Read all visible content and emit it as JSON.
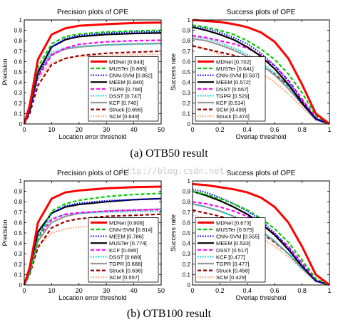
{
  "captions": {
    "a": "(a) OTB50 result",
    "b": "(b) OTB100 result"
  },
  "watermark": "http://blog.csdn.net",
  "chart_data": [
    {
      "id": "otb50-precision",
      "type": "line",
      "title": "Precision plots of OPE",
      "xlabel": "Location error threshold",
      "ylabel": "Precision",
      "xlim": [
        0,
        50
      ],
      "ylim": [
        0,
        1
      ],
      "xticks": [
        "0",
        "10",
        "20",
        "30",
        "40",
        "50"
      ],
      "yticks": [
        "0",
        "0.1",
        "0.2",
        "0.3",
        "0.4",
        "0.5",
        "0.6",
        "0.7",
        "0.8",
        "0.9",
        "1"
      ],
      "x": [
        0,
        2,
        5,
        10,
        15,
        20,
        30,
        40,
        50
      ],
      "legend_position": "bottom-right",
      "series": [
        {
          "name": "MDNet [0.944]",
          "color": "#ff0000",
          "dash": "solid",
          "values": [
            0.0,
            0.18,
            0.62,
            0.86,
            0.92,
            0.944,
            0.96,
            0.97,
            0.975
          ]
        },
        {
          "name": "MUSTer [0.865]",
          "color": "#00cc00",
          "dash": "dashed",
          "values": [
            0.0,
            0.16,
            0.55,
            0.77,
            0.84,
            0.865,
            0.885,
            0.895,
            0.9
          ]
        },
        {
          "name": "CNN-SVM [0.852]",
          "color": "#0000ff",
          "dash": "dotted",
          "values": [
            0.0,
            0.12,
            0.46,
            0.74,
            0.82,
            0.852,
            0.875,
            0.885,
            0.89
          ]
        },
        {
          "name": "MEEM [0.840]",
          "color": "#000000",
          "dash": "solid",
          "values": [
            0.0,
            0.13,
            0.5,
            0.74,
            0.81,
            0.84,
            0.86,
            0.87,
            0.875
          ]
        },
        {
          "name": "TGPR [0.766]",
          "color": "#ff00ff",
          "dash": "dashed",
          "values": [
            0.0,
            0.13,
            0.45,
            0.66,
            0.73,
            0.766,
            0.79,
            0.8,
            0.805
          ]
        },
        {
          "name": "DSST [0.747]",
          "color": "#00cccc",
          "dash": "dotted",
          "values": [
            0.0,
            0.17,
            0.52,
            0.69,
            0.73,
            0.747,
            0.76,
            0.765,
            0.77
          ]
        },
        {
          "name": "KCF [0.740]",
          "color": "#999999",
          "dash": "solid",
          "values": [
            0.0,
            0.13,
            0.48,
            0.67,
            0.72,
            0.74,
            0.76,
            0.77,
            0.775
          ]
        },
        {
          "name": "Struck [0.656]",
          "color": "#990000",
          "dash": "dashed",
          "values": [
            0.0,
            0.1,
            0.37,
            0.57,
            0.63,
            0.656,
            0.68,
            0.69,
            0.7
          ]
        },
        {
          "name": "SCM [0.649]",
          "color": "#ff9966",
          "dash": "dotted",
          "values": [
            0.0,
            0.13,
            0.43,
            0.59,
            0.63,
            0.649,
            0.66,
            0.665,
            0.67
          ]
        }
      ]
    },
    {
      "id": "otb50-success",
      "type": "line",
      "title": "Success plots of OPE",
      "xlabel": "Overlap threshold",
      "ylabel": "Success rate",
      "xlim": [
        0,
        1
      ],
      "ylim": [
        0,
        1
      ],
      "xticks": [
        "0",
        "0.2",
        "0.4",
        "0.6",
        "0.8",
        "1"
      ],
      "yticks": [
        "0",
        "0.1",
        "0.2",
        "0.3",
        "0.4",
        "0.5",
        "0.6",
        "0.7",
        "0.8",
        "0.9",
        "1"
      ],
      "x": [
        0,
        0.1,
        0.2,
        0.3,
        0.4,
        0.5,
        0.6,
        0.7,
        0.8,
        0.9,
        1.0
      ],
      "legend_position": "bottom-left",
      "series": [
        {
          "name": "MDNet [0.702]",
          "color": "#ff0000",
          "dash": "solid",
          "values": [
            1.0,
            0.99,
            0.98,
            0.96,
            0.93,
            0.88,
            0.79,
            0.63,
            0.38,
            0.1,
            0.0
          ]
        },
        {
          "name": "MUSTer [0.641]",
          "color": "#00cc00",
          "dash": "dashed",
          "values": [
            0.95,
            0.93,
            0.9,
            0.86,
            0.8,
            0.72,
            0.62,
            0.48,
            0.3,
            0.08,
            0.0
          ]
        },
        {
          "name": "CNN-SVM [0.597]",
          "color": "#0000ff",
          "dash": "dotted",
          "values": [
            0.94,
            0.92,
            0.88,
            0.83,
            0.77,
            0.68,
            0.56,
            0.41,
            0.22,
            0.05,
            0.0
          ]
        },
        {
          "name": "MEEM [0.572]",
          "color": "#000000",
          "dash": "solid",
          "values": [
            0.93,
            0.9,
            0.86,
            0.81,
            0.74,
            0.65,
            0.53,
            0.38,
            0.2,
            0.05,
            0.0
          ]
        },
        {
          "name": "DSST [0.557]",
          "color": "#ff00ff",
          "dash": "dashed",
          "values": [
            0.85,
            0.83,
            0.8,
            0.77,
            0.73,
            0.66,
            0.56,
            0.42,
            0.24,
            0.06,
            0.0
          ]
        },
        {
          "name": "TGPR [0.529]",
          "color": "#00cccc",
          "dash": "dotted",
          "values": [
            0.84,
            0.82,
            0.78,
            0.73,
            0.67,
            0.59,
            0.49,
            0.36,
            0.2,
            0.05,
            0.0
          ]
        },
        {
          "name": "KCF [0.514]",
          "color": "#999999",
          "dash": "solid",
          "values": [
            0.82,
            0.8,
            0.76,
            0.71,
            0.65,
            0.57,
            0.47,
            0.34,
            0.19,
            0.04,
            0.0
          ]
        },
        {
          "name": "SCM [0.499]",
          "color": "#990000",
          "dash": "dashed",
          "values": [
            0.75,
            0.72,
            0.69,
            0.66,
            0.62,
            0.56,
            0.48,
            0.37,
            0.22,
            0.05,
            0.0
          ]
        },
        {
          "name": "Struck [0.474]",
          "color": "#ff9966",
          "dash": "dotted",
          "values": [
            0.76,
            0.72,
            0.67,
            0.62,
            0.56,
            0.49,
            0.4,
            0.29,
            0.16,
            0.04,
            0.0
          ]
        }
      ]
    },
    {
      "id": "otb100-precision",
      "type": "line",
      "title": "Precision plots of OPE",
      "xlabel": "Location error threshold",
      "ylabel": "Precision",
      "xlim": [
        0,
        50
      ],
      "ylim": [
        0,
        1
      ],
      "xticks": [
        "0",
        "10",
        "20",
        "30",
        "40",
        "50"
      ],
      "yticks": [
        "0",
        "0.1",
        "0.2",
        "0.3",
        "0.4",
        "0.5",
        "0.6",
        "0.7",
        "0.8",
        "0.9",
        "1"
      ],
      "x": [
        0,
        2,
        5,
        10,
        15,
        20,
        30,
        40,
        50
      ],
      "legend_position": "bottom-right",
      "series": [
        {
          "name": "MDNet [0.908]",
          "color": "#ff0000",
          "dash": "solid",
          "values": [
            0.0,
            0.17,
            0.6,
            0.83,
            0.89,
            0.908,
            0.93,
            0.94,
            0.945
          ]
        },
        {
          "name": "CNN-SVM [0.814]",
          "color": "#00cc00",
          "dash": "dashed",
          "values": [
            0.0,
            0.11,
            0.44,
            0.71,
            0.78,
            0.814,
            0.85,
            0.87,
            0.88
          ]
        },
        {
          "name": "MEEM [0.786]",
          "color": "#0000ff",
          "dash": "dotted",
          "values": [
            0.0,
            0.12,
            0.47,
            0.69,
            0.76,
            0.786,
            0.81,
            0.82,
            0.83
          ]
        },
        {
          "name": "MUSTer [0.774]",
          "color": "#000000",
          "dash": "solid",
          "values": [
            0.0,
            0.15,
            0.51,
            0.69,
            0.75,
            0.774,
            0.8,
            0.82,
            0.83
          ]
        },
        {
          "name": "KCF [0.695]",
          "color": "#ff00ff",
          "dash": "dashed",
          "values": [
            0.0,
            0.13,
            0.45,
            0.63,
            0.68,
            0.695,
            0.71,
            0.72,
            0.725
          ]
        },
        {
          "name": "DSST [0.689]",
          "color": "#00cccc",
          "dash": "dotted",
          "values": [
            0.0,
            0.15,
            0.48,
            0.64,
            0.68,
            0.689,
            0.7,
            0.705,
            0.71
          ]
        },
        {
          "name": "TGPR [0.688]",
          "color": "#999999",
          "dash": "solid",
          "values": [
            0.0,
            0.12,
            0.42,
            0.6,
            0.66,
            0.688,
            0.71,
            0.72,
            0.73
          ]
        },
        {
          "name": "Struck [0.636]",
          "color": "#990000",
          "dash": "dashed",
          "values": [
            0.0,
            0.1,
            0.36,
            0.55,
            0.61,
            0.636,
            0.66,
            0.67,
            0.68
          ]
        },
        {
          "name": "SCM [0.557]",
          "color": "#ff9966",
          "dash": "dotted",
          "values": [
            0.0,
            0.11,
            0.37,
            0.5,
            0.54,
            0.557,
            0.57,
            0.575,
            0.58
          ]
        }
      ]
    },
    {
      "id": "otb100-success",
      "type": "line",
      "title": "Success plots of OPE",
      "xlabel": "Overlap threshold",
      "ylabel": "Success rate",
      "xlim": [
        0,
        1
      ],
      "ylim": [
        0,
        1
      ],
      "xticks": [
        "0",
        "0.2",
        "0.4",
        "0.6",
        "0.8",
        "1"
      ],
      "yticks": [
        "0",
        "0.1",
        "0.2",
        "0.3",
        "0.4",
        "0.5",
        "0.6",
        "0.7",
        "0.8",
        "0.9",
        "1"
      ],
      "x": [
        0,
        0.1,
        0.2,
        0.3,
        0.4,
        0.5,
        0.6,
        0.7,
        0.8,
        0.9,
        1.0
      ],
      "legend_position": "bottom-left",
      "series": [
        {
          "name": "MDNet [0.673]",
          "color": "#ff0000",
          "dash": "solid",
          "values": [
            0.97,
            0.96,
            0.94,
            0.92,
            0.89,
            0.84,
            0.75,
            0.6,
            0.37,
            0.1,
            0.0
          ]
        },
        {
          "name": "MUSTer [0.575]",
          "color": "#00cc00",
          "dash": "dashed",
          "values": [
            0.9,
            0.87,
            0.83,
            0.78,
            0.72,
            0.64,
            0.54,
            0.41,
            0.24,
            0.06,
            0.0
          ]
        },
        {
          "name": "CNN-SVM [0.555]",
          "color": "#0000ff",
          "dash": "dotted",
          "values": [
            0.92,
            0.89,
            0.84,
            0.78,
            0.71,
            0.62,
            0.5,
            0.36,
            0.19,
            0.04,
            0.0
          ]
        },
        {
          "name": "MEEM [0.533]",
          "color": "#000000",
          "dash": "solid",
          "values": [
            0.9,
            0.86,
            0.81,
            0.75,
            0.68,
            0.59,
            0.48,
            0.34,
            0.18,
            0.04,
            0.0
          ]
        },
        {
          "name": "DSST [0.517]",
          "color": "#ff00ff",
          "dash": "dashed",
          "values": [
            0.8,
            0.78,
            0.75,
            0.71,
            0.66,
            0.59,
            0.49,
            0.37,
            0.21,
            0.05,
            0.0
          ]
        },
        {
          "name": "KCF [0.477]",
          "color": "#00cccc",
          "dash": "dotted",
          "values": [
            0.78,
            0.75,
            0.71,
            0.66,
            0.6,
            0.52,
            0.42,
            0.3,
            0.16,
            0.04,
            0.0
          ]
        },
        {
          "name": "TGPR [0.477]",
          "color": "#999999",
          "dash": "solid",
          "values": [
            0.78,
            0.75,
            0.71,
            0.66,
            0.6,
            0.52,
            0.42,
            0.3,
            0.16,
            0.04,
            0.0
          ]
        },
        {
          "name": "Struck [0.458]",
          "color": "#990000",
          "dash": "dashed",
          "values": [
            0.72,
            0.69,
            0.66,
            0.62,
            0.57,
            0.5,
            0.41,
            0.3,
            0.17,
            0.04,
            0.0
          ]
        },
        {
          "name": "SCM [0.429]",
          "color": "#ff9966",
          "dash": "dotted",
          "values": [
            0.67,
            0.64,
            0.6,
            0.56,
            0.51,
            0.45,
            0.37,
            0.27,
            0.15,
            0.03,
            0.0
          ]
        }
      ]
    }
  ]
}
